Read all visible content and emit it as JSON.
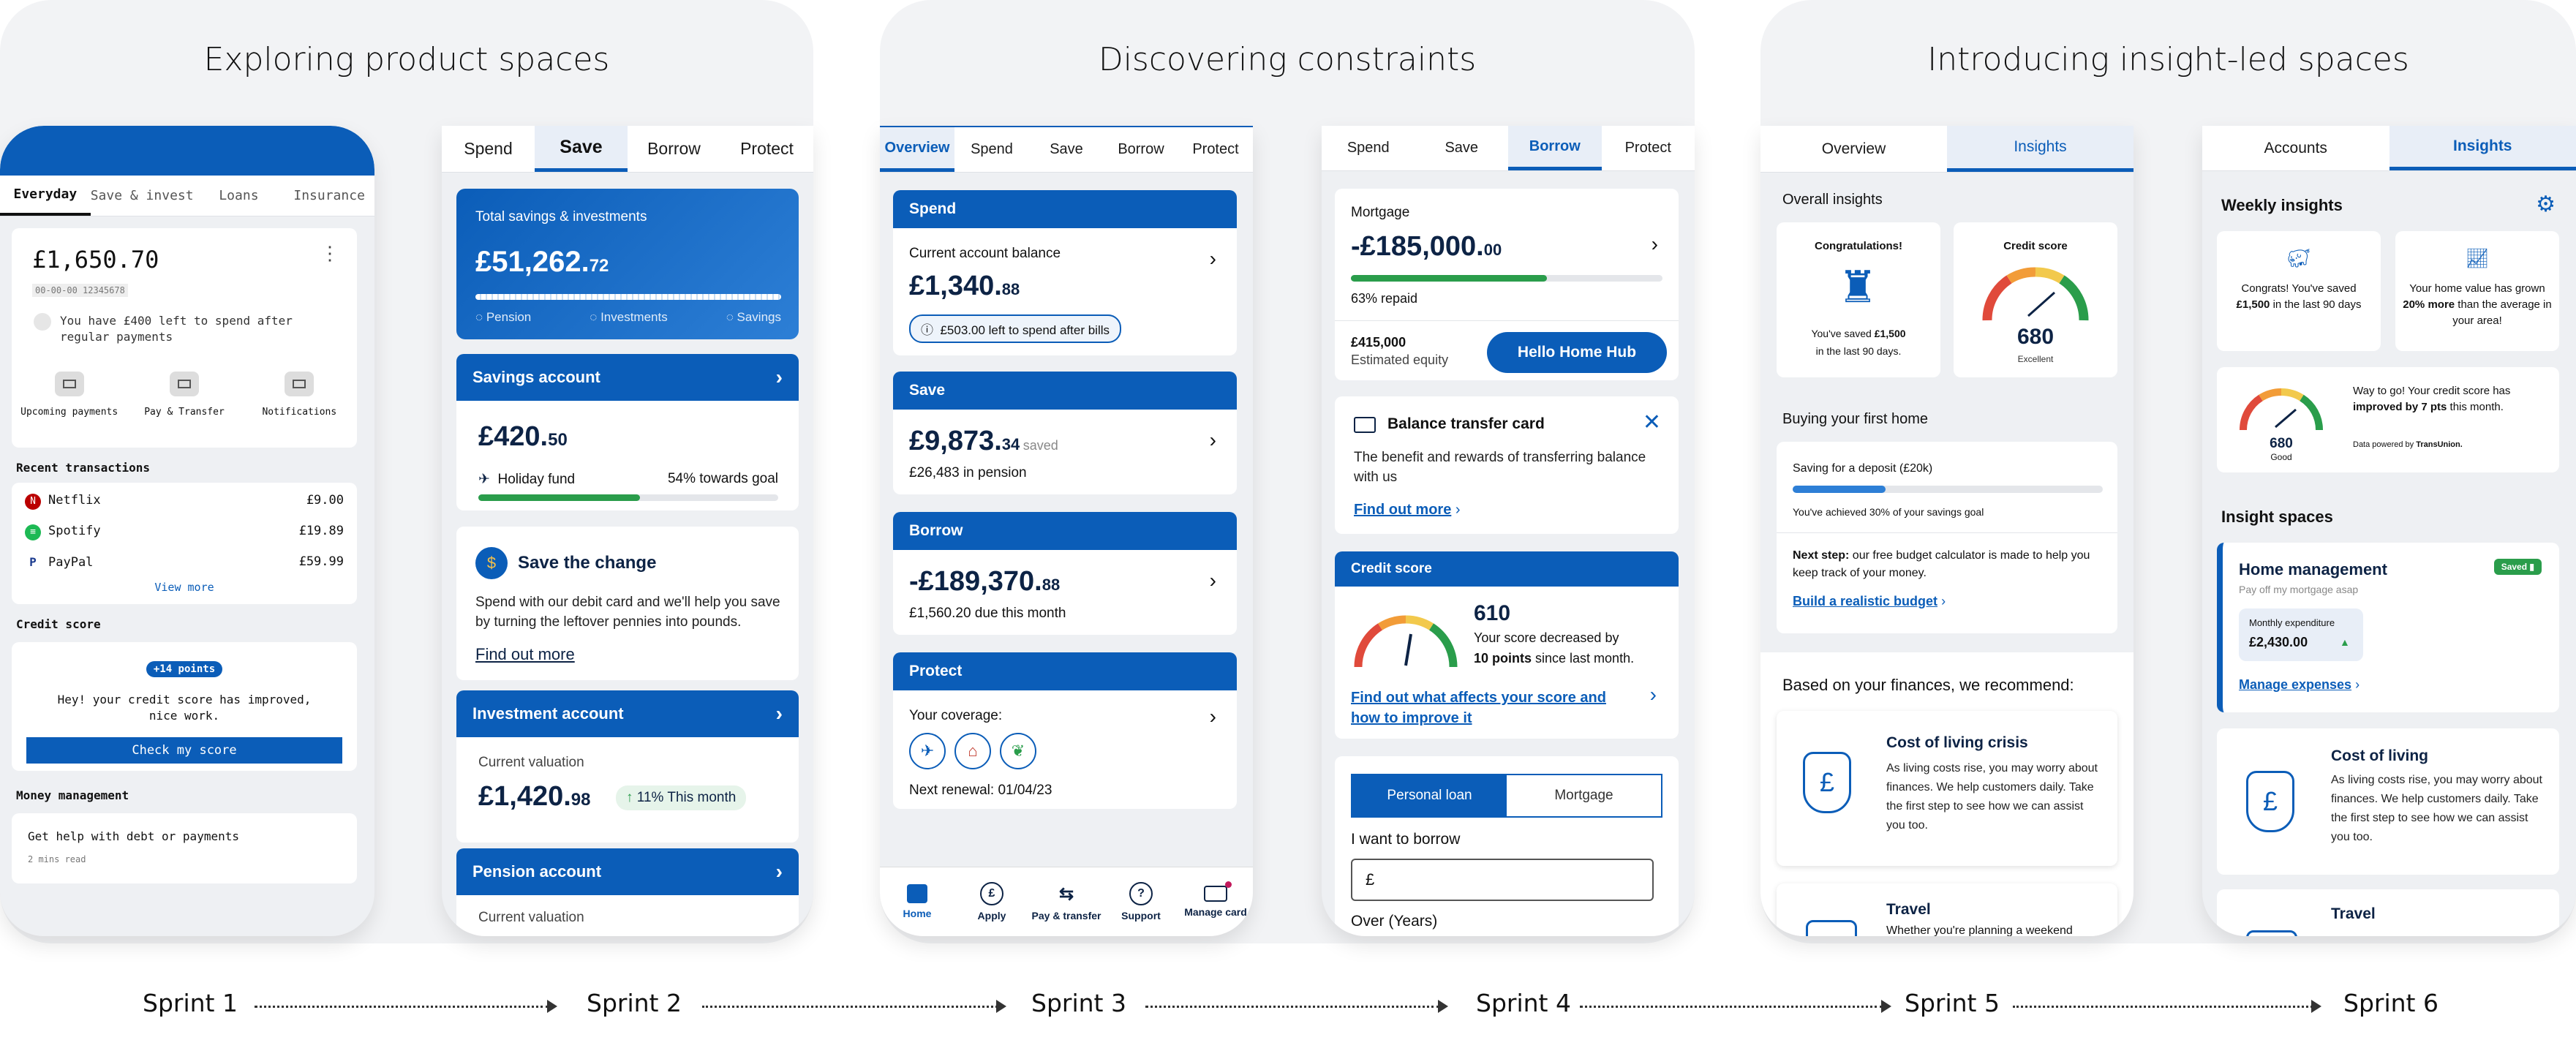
{
  "panels": [
    {
      "title": "Exploring product spaces"
    },
    {
      "title": "Discovering constraints"
    },
    {
      "title": "Introducing insight-led spaces"
    }
  ],
  "sprints": [
    "Sprint 1",
    "Sprint 2",
    "Sprint 3",
    "Sprint 4",
    "Sprint 5",
    "Sprint 6"
  ],
  "s1": {
    "tabs": [
      "Everyday",
      "Save & invest",
      "Loans",
      "Insurance"
    ],
    "balance": "£1,650.70",
    "account": "00-00-00 12345678",
    "left_msg": "You have £400 left to spend after regular payments",
    "actions": [
      "Upcoming payments",
      "Pay & Transfer",
      "Notifications"
    ],
    "recent_label": "Recent transactions",
    "tx": [
      {
        "name": "Netflix",
        "amount": "£9.00"
      },
      {
        "name": "Spotify",
        "amount": "£19.89"
      },
      {
        "name": "PayPal",
        "amount": "£59.99"
      }
    ],
    "view_more": "View more",
    "credit_label": "Credit score",
    "points": "+14 points",
    "credit_msg": "Hey! your credit score has improved, nice work.",
    "check_btn": "Check my score",
    "money_label": "Money management",
    "help_title": "Get help with debt or payments",
    "help_time": "2 mins read"
  },
  "s2": {
    "tabs": [
      "Spend",
      "Save",
      "Borrow",
      "Protect"
    ],
    "total_label": "Total savings & investments",
    "total_main": "£51,262.",
    "total_dec": "72",
    "legend": [
      "Pension",
      "Investments",
      "Savings"
    ],
    "savings_title": "Savings account",
    "savings_main": "£420.",
    "savings_dec": "50",
    "fund": "Holiday fund",
    "goal": "54% towards goal",
    "goal_pct": 54,
    "stc_title": "Save the change",
    "stc_body": "Spend with our debit card and we'll help you save by turning the leftover pennies into pounds.",
    "stc_link": "Find out more",
    "inv_title": "Investment account",
    "inv_label": "Current valuation",
    "inv_main": "£1,420.",
    "inv_dec": "98",
    "inv_badge": "11% This month",
    "pen_title": "Pension account",
    "pen_label": "Current valuation"
  },
  "s3": {
    "tabs": [
      "Overview",
      "Spend",
      "Save",
      "Borrow",
      "Protect"
    ],
    "spend_h": "Spend",
    "cab": "Current account balance",
    "cab_main": "£1,340.",
    "cab_dec": "88",
    "left_pill": "£503.00 left to spend after bills",
    "save_h": "Save",
    "save_main": "£9,873.",
    "save_dec": "34",
    "save_suffix": "saved",
    "pension": "£26,483 in pension",
    "borrow_h": "Borrow",
    "borrow_main": "-£189,370.",
    "borrow_dec": "88",
    "due": "£1,560.20 due this month",
    "protect_h": "Protect",
    "coverage": "Your coverage:",
    "renewal": "Next renewal: 01/04/23",
    "nav": [
      "Home",
      "Apply",
      "Pay & transfer",
      "Support",
      "Manage card"
    ]
  },
  "s4": {
    "tabs": [
      "Spend",
      "Save",
      "Borrow",
      "Protect"
    ],
    "mortgage_label": "Mortgage",
    "mortgage_main": "-£185,000.",
    "mortgage_dec": "00",
    "repaid": "63% repaid",
    "repaid_pct": 63,
    "equity_val": "£415,000",
    "equity_label": "Estimated equity",
    "hub_btn": "Hello Home Hub",
    "btc_title": "Balance transfer card",
    "btc_body": "The benefit and rewards of transferring balance with us",
    "btc_link": "Find out more",
    "cs_h": "Credit score",
    "cs_val": "610",
    "cs_msg1": "Your score decreased by",
    "cs_msg2b": "10 points",
    "cs_msg2": " since last month.",
    "cs_link": "Find out  what affects your score and how to improve it",
    "seg": [
      "Personal loan",
      "Mortgage"
    ],
    "want": "I want to borrow",
    "currency": "£",
    "over": "Over (Years)"
  },
  "s5": {
    "tabs": [
      "Overview",
      "Insights"
    ],
    "overall": "Overall insights",
    "congrats": "Congratulations!",
    "saved_msg1": "You've saved ",
    "saved_amt": "£1,500",
    "saved_msg2": "in the last 90 days.",
    "cs_title": "Credit score",
    "cs_val": "680",
    "cs_word": "Excellent",
    "buying": "Buying your first home",
    "deposit": "Saving for a deposit (£20k)",
    "deposit_pct": 30,
    "achieved": "You've achieved 30% of your savings goal",
    "next_b": "Next step:",
    "next": " our free budget calculator is made to help you keep track of your money.",
    "budget_link": "Build a realistic budget",
    "recommend": "Based on your finances, we recommend:",
    "col_title": "Cost of living crisis",
    "col_body": "As living costs rise, you may worry about finances. We help customers daily. Take the first step to see how we can assist you too.",
    "travel": "Travel",
    "travel_body": "Whether you're planning a weekend"
  },
  "s6": {
    "tabs": [
      "Accounts",
      "Insights"
    ],
    "weekly": "Weekly insights",
    "w1a": "Congrats! You've saved",
    "w1b": "£1,500",
    "w1c": " in the last 90 days",
    "w2a": "Your home value has grown ",
    "w2b": "20% more",
    "w2c": " than the average in your area!",
    "cs_val": "680",
    "cs_word": "Good",
    "cs_msg_a": "Way to go! Your credit score has ",
    "cs_msg_b": "improved by 7 pts",
    "cs_msg_c": " this month.",
    "powered": "Data powered by",
    "powered_brand": "TransUnion.",
    "spaces": "Insight spaces",
    "hm_title": "Home management",
    "hm_sub": "Pay off my mortgage asap",
    "saved_badge": "Saved",
    "exp_label": "Monthly expenditure",
    "exp_val": "£2,430.00",
    "manage": "Manage expenses",
    "col_title": "Cost of living",
    "col_body": "As living costs rise, you may worry about finances. We help customers daily. Take the first step to see how we can assist you too.",
    "travel": "Travel"
  },
  "colors": {
    "brand": "#0b5db8",
    "navy": "#0d2345",
    "green": "#2a9d4b"
  }
}
